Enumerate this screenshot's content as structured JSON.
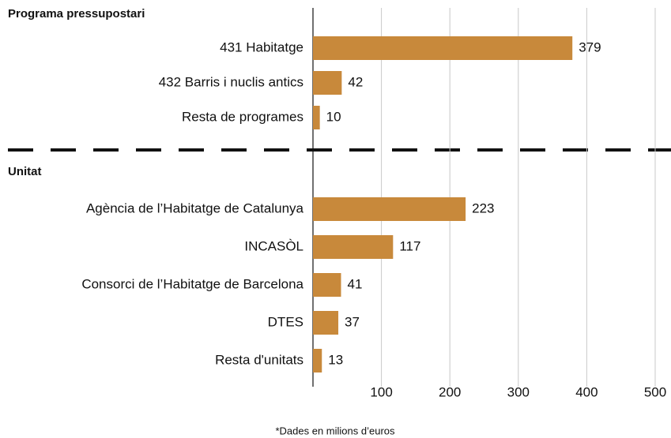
{
  "chart_data": {
    "type": "bar",
    "orientation": "horizontal",
    "color": "#c8893b",
    "groups": [
      {
        "title": "Programa pressupostari",
        "categories": [
          "431 Habitatge",
          "432 Barris i nuclis antics",
          "Resta de programes"
        ],
        "values": [
          379,
          42,
          10
        ]
      },
      {
        "title": "Unitat",
        "categories": [
          "Agència de l’Habitatge de Catalunya",
          "INCASÒL",
          "Consorci de l’Habitatge de Barcelona",
          "DTES",
          "Resta d'unitats"
        ],
        "values": [
          223,
          117,
          41,
          37,
          13
        ]
      }
    ],
    "xlim": [
      0,
      500
    ],
    "xticks": [
      100,
      200,
      300,
      400,
      500
    ],
    "grid": true,
    "footnote": "*Dades en milions d’euros"
  }
}
